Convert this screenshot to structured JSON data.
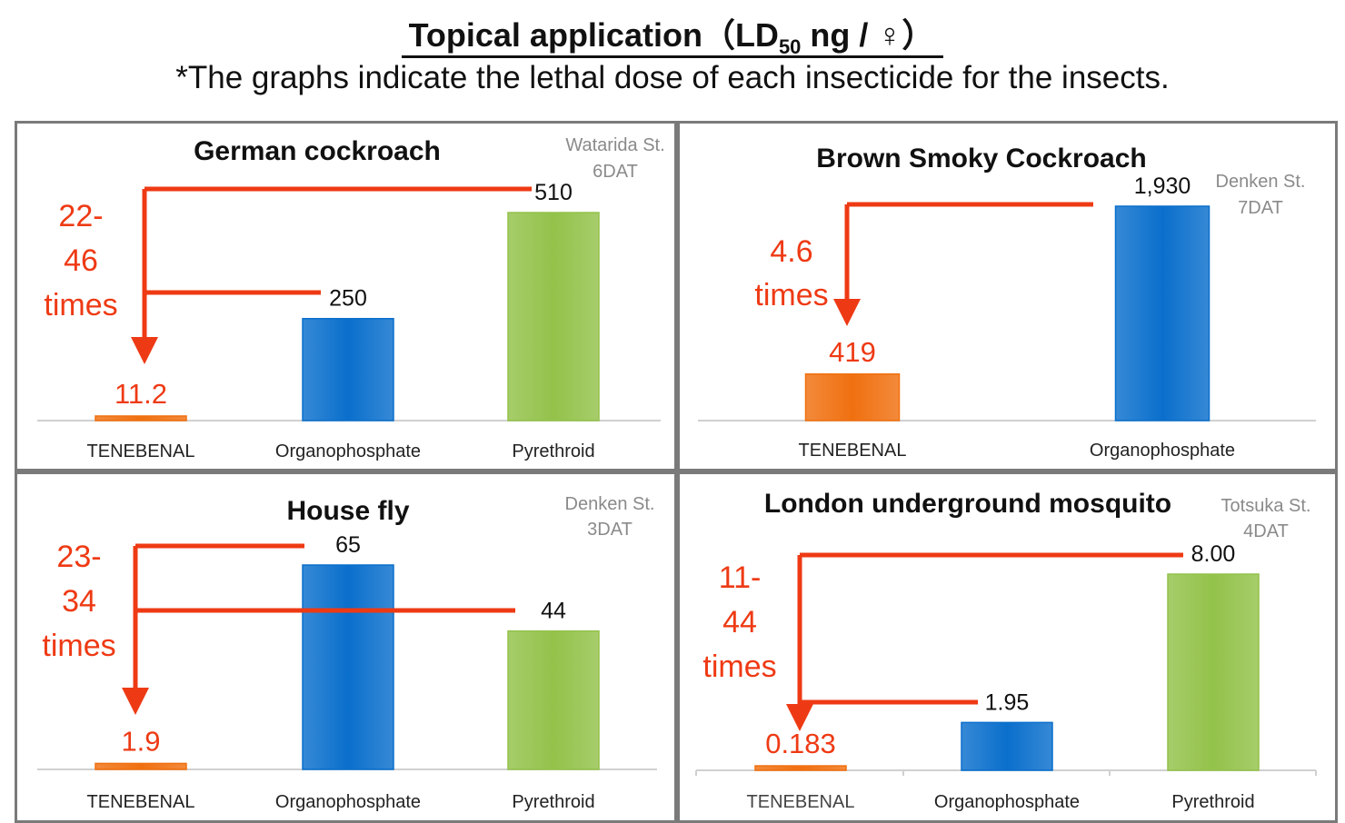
{
  "header": {
    "title_main": "Topical application（LD",
    "title_sub": "50",
    "title_end": " ng / ♀）",
    "subtitle": "*The graphs indicate the lethal dose of each insecticide for the insects."
  },
  "colors": {
    "tenebenal": "#f07010",
    "organophosphate": "#0a6fcc",
    "pyrethroid": "#93c24a",
    "annotation": "#ee3a14",
    "axis": "#d0d0d0",
    "station_text": "#8a8a8a",
    "frame": "#7a7a7a"
  },
  "chart_data": [
    {
      "type": "bar",
      "title": "German cockroach",
      "station": [
        "Watarida St.",
        "6DAT"
      ],
      "categories": [
        "TENEBENAL",
        "Organophosphate",
        "Pyrethroid"
      ],
      "values": [
        11.2,
        250,
        510
      ],
      "value_labels": [
        "11.2",
        "250",
        "510"
      ],
      "ylim": [
        0,
        510
      ],
      "annotation": [
        "22-",
        "46",
        "times"
      ]
    },
    {
      "type": "bar",
      "title": "Brown Smoky Cockroach",
      "station": [
        "Denken St.",
        "7DAT"
      ],
      "categories": [
        "TENEBENAL",
        "Organophosphate"
      ],
      "values": [
        419,
        1930
      ],
      "value_labels": [
        "419",
        "1,930"
      ],
      "ylim": [
        0,
        1930
      ],
      "annotation": [
        "4.6",
        "times"
      ]
    },
    {
      "type": "bar",
      "title": "House fly",
      "station": [
        "Denken St.",
        "3DAT"
      ],
      "categories": [
        "TENEBENAL",
        "Organophosphate",
        "Pyrethroid"
      ],
      "values": [
        1.9,
        65,
        44
      ],
      "value_labels": [
        "1.9",
        "65",
        "44"
      ],
      "ylim": [
        0,
        65
      ],
      "annotation": [
        "23-",
        "34",
        "times"
      ]
    },
    {
      "type": "bar",
      "title": "London underground mosquito",
      "station": [
        "Totsuka St.",
        "4DAT"
      ],
      "categories": [
        "TENEBENAL",
        "Organophosphate",
        "Pyrethroid"
      ],
      "values": [
        0.183,
        1.95,
        8.0
      ],
      "value_labels": [
        "0.183",
        "1.95",
        "8.00"
      ],
      "ylim": [
        0,
        8.0
      ],
      "annotation": [
        "11-",
        "44",
        "times"
      ]
    }
  ]
}
